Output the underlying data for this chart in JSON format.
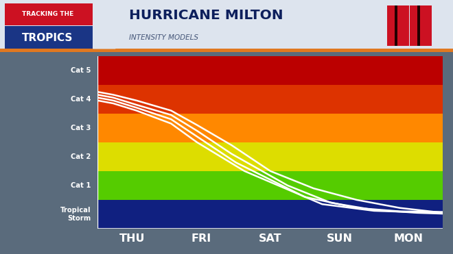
{
  "title_main": "HURRICANE MILTON",
  "title_sub": "INTENSITY MODELS",
  "days": [
    "THU",
    "FRI",
    "SAT",
    "SUN",
    "MON"
  ],
  "band_colors": [
    "#102080",
    "#55cc00",
    "#dddd00",
    "#ff8800",
    "#dd3300",
    "#bb0000"
  ],
  "band_edges": [
    0.0,
    1.0,
    2.0,
    3.0,
    4.0,
    5.0,
    6.0
  ],
  "bg_left_color": "#1a3585",
  "days_bar_color": "#0d1f5c",
  "header_bg": "#dde4ee",
  "header_left_bg_top": "#cc1122",
  "header_left_bg_bot": "#1a3585",
  "header_accent_color": "#e07820",
  "header_title_color": "#0d1f5c",
  "header_sub_color": "#445577",
  "fig_bg_color": "#5a6b7c",
  "sq_color": "#cc1122",
  "sq_inner_color": "#220000",
  "lines": [
    {
      "x": [
        0.0,
        0.18,
        0.45,
        0.85,
        1.15,
        1.55,
        2.0,
        2.5,
        3.0,
        3.5,
        4.0
      ],
      "y": [
        4.75,
        4.65,
        4.45,
        4.1,
        3.6,
        2.9,
        2.0,
        1.4,
        1.0,
        0.72,
        0.55
      ]
    },
    {
      "x": [
        0.0,
        0.18,
        0.45,
        0.85,
        1.15,
        1.55,
        2.2,
        2.7,
        3.2,
        3.7,
        4.0
      ],
      "y": [
        4.65,
        4.55,
        4.3,
        3.95,
        3.4,
        2.6,
        1.5,
        0.9,
        0.65,
        0.55,
        0.52
      ]
    },
    {
      "x": [
        0.0,
        0.18,
        0.45,
        0.85,
        1.15,
        1.6,
        2.4,
        3.0,
        3.5,
        4.0
      ],
      "y": [
        4.55,
        4.45,
        4.2,
        3.8,
        3.2,
        2.3,
        1.1,
        0.72,
        0.6,
        0.58
      ]
    },
    {
      "x": [
        0.0,
        0.18,
        0.45,
        0.85,
        1.15,
        1.7,
        2.6,
        3.2,
        3.7,
        4.0
      ],
      "y": [
        4.45,
        4.35,
        4.1,
        3.65,
        3.0,
        2.0,
        0.85,
        0.62,
        0.57,
        0.55
      ]
    }
  ],
  "line_color": "#ffffff",
  "line_width": 1.8,
  "cat_labels": [
    "Tropical\nStorm",
    "Cat 1",
    "Cat 2",
    "Cat 3",
    "Cat 4",
    "Cat 5"
  ],
  "cat_y_pos": [
    0.5,
    1.5,
    2.5,
    3.5,
    4.5,
    5.5
  ]
}
